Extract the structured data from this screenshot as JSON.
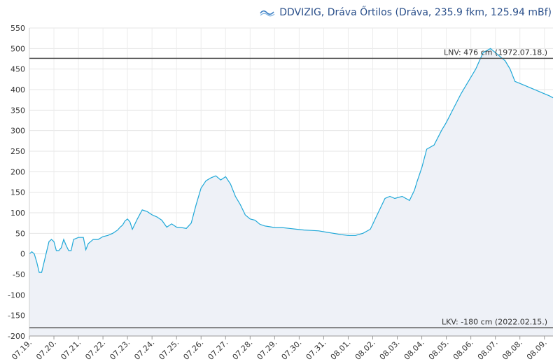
{
  "header": {
    "logo_icon": "ddvizig-logo-icon",
    "title": "DDVIZIG, Dráva Őrtilos (Dráva, 235.9 fkm, 125.94 mBf)"
  },
  "chart_data": {
    "type": "area",
    "title": "DDVIZIG, Dráva Őrtilos (Dráva, 235.9 fkm, 125.94 mBf)",
    "ylim": [
      -200,
      550
    ],
    "yticks": [
      "550",
      "500",
      "450",
      "400",
      "350",
      "300",
      "250",
      "200",
      "150",
      "100",
      "50",
      "0",
      "-50",
      "-100",
      "-150",
      "-200"
    ],
    "yticks_values": [
      550,
      500,
      450,
      400,
      350,
      300,
      250,
      200,
      150,
      100,
      50,
      0,
      -50,
      -100,
      -150,
      -200
    ],
    "xlim": [
      0,
      21.35
    ],
    "xticks": [
      "07.19.",
      "07.20.",
      "07.21.",
      "07.22.",
      "07.23.",
      "07.24.",
      "07.25.",
      "07.26.",
      "07.27.",
      "07.28.",
      "07.29.",
      "07.30.",
      "07.31.",
      "08.01.",
      "08.02.",
      "08.03.",
      "08.04.",
      "08.05.",
      "08.06.",
      "08.07.",
      "08.08.",
      "08.09."
    ],
    "grid": true,
    "series": [
      {
        "color": "#1fa8d8",
        "fill": "#eef1f7",
        "x": [
          0,
          0.1,
          0.2,
          0.3,
          0.4,
          0.5,
          0.7,
          0.8,
          0.9,
          1.0,
          1.1,
          1.2,
          1.3,
          1.4,
          1.5,
          1.6,
          1.7,
          1.8,
          2.0,
          2.2,
          2.3,
          2.4,
          2.5,
          2.6,
          2.8,
          3.0,
          3.2,
          3.4,
          3.6,
          3.7,
          3.8,
          3.9,
          4.0,
          4.1,
          4.2,
          4.4,
          4.6,
          4.8,
          5.0,
          5.2,
          5.4,
          5.6,
          5.8,
          6.0,
          6.2,
          6.4,
          6.6,
          6.8,
          7.0,
          7.2,
          7.4,
          7.6,
          7.8,
          8.0,
          8.2,
          8.4,
          8.6,
          8.8,
          9.0,
          9.2,
          9.4,
          9.6,
          9.8,
          10.0,
          10.3,
          10.6,
          10.9,
          11.2,
          11.5,
          11.8,
          12.1,
          12.4,
          12.7,
          13.0,
          13.3,
          13.6,
          13.9,
          14.0,
          14.1,
          14.3,
          14.5,
          14.7,
          14.9,
          15.2,
          15.5,
          15.7,
          15.8,
          16.0,
          16.2,
          16.5,
          16.8,
          17.0,
          17.3,
          17.6,
          17.9,
          18.2,
          18.5,
          18.8,
          19.0,
          19.2,
          19.4,
          19.6,
          19.8,
          20.0,
          20.2,
          20.4,
          20.6,
          20.8,
          21.0,
          21.2,
          21.35
        ],
        "y": [
          0,
          5,
          0,
          -20,
          -45,
          -45,
          5,
          30,
          35,
          30,
          8,
          8,
          15,
          35,
          20,
          8,
          8,
          35,
          40,
          40,
          10,
          25,
          30,
          35,
          35,
          42,
          45,
          50,
          58,
          65,
          70,
          80,
          85,
          78,
          60,
          85,
          107,
          103,
          95,
          90,
          82,
          65,
          73,
          65,
          64,
          62,
          75,
          120,
          160,
          178,
          185,
          190,
          180,
          188,
          170,
          140,
          120,
          95,
          85,
          82,
          72,
          68,
          66,
          64,
          64,
          62,
          60,
          58,
          57,
          56,
          53,
          50,
          47,
          45,
          45,
          50,
          60,
          72,
          85,
          110,
          135,
          140,
          135,
          140,
          130,
          155,
          175,
          210,
          255,
          265,
          300,
          320,
          355,
          390,
          420,
          450,
          490,
          500,
          490,
          480,
          470,
          450,
          420,
          415,
          410,
          405,
          400,
          395,
          390,
          385,
          380
        ]
      }
    ],
    "ref_lines": [
      {
        "value": 476,
        "label": "LNV: 476 cm (1972.07.18.)",
        "color": "#555555"
      },
      {
        "value": -180,
        "label": "LKV: -180 cm (2022.02.15.)",
        "color": "#555555"
      }
    ]
  }
}
